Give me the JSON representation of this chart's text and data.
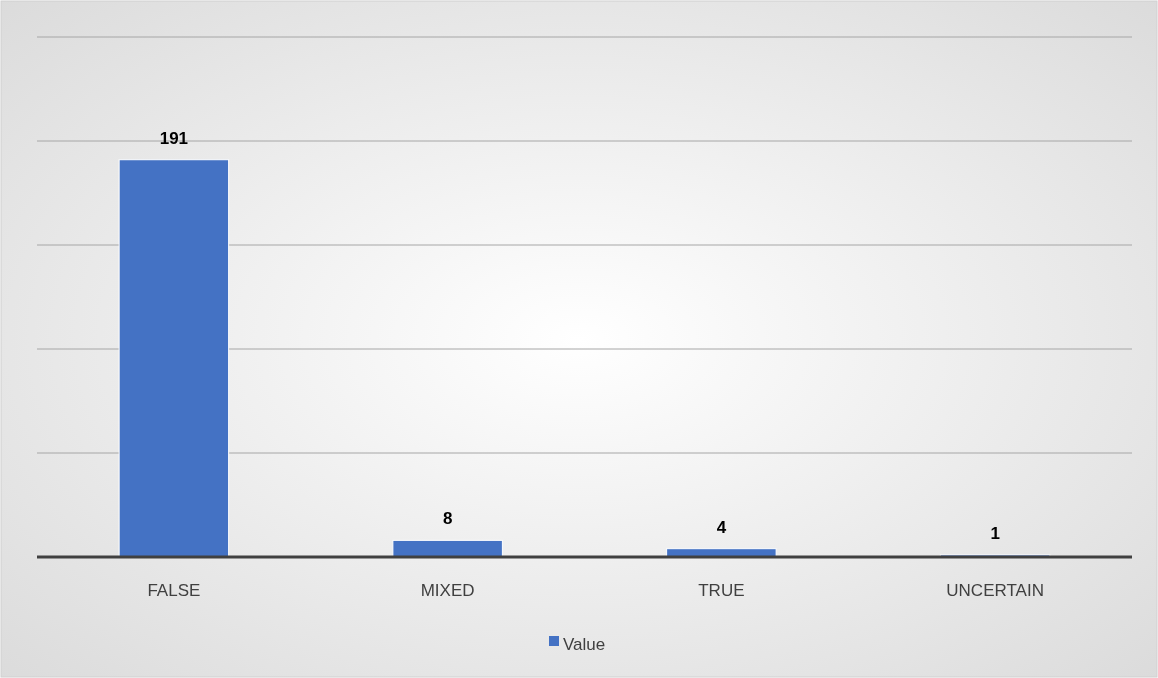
{
  "chart_data": {
    "type": "bar",
    "categories": [
      "FALSE",
      "MIXED",
      "TRUE",
      "UNCERTAIN"
    ],
    "series": [
      {
        "name": "Value",
        "color": "#4472c4",
        "values": [
          191,
          8,
          4,
          1
        ]
      }
    ],
    "ylim": [
      0,
      250
    ],
    "yticks": [
      {
        "value": 0,
        "label": null
      },
      {
        "value": 50,
        "label": null
      },
      {
        "value": 100,
        "label": null
      },
      {
        "value": 150,
        "label": null
      },
      {
        "value": 200,
        "label": null
      },
      {
        "value": 250,
        "label": null
      }
    ],
    "tick_labels": "x",
    "grid": "y",
    "data_labels": true,
    "legend": "bottom"
  }
}
